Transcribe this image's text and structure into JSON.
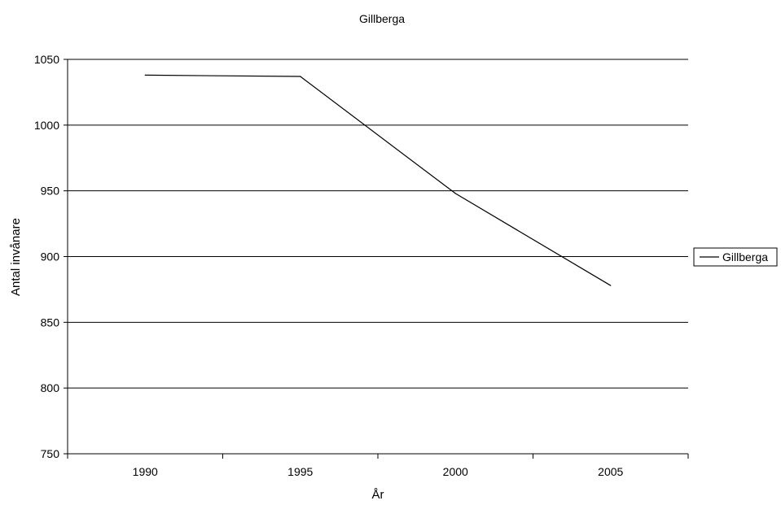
{
  "chart_data": {
    "type": "line",
    "title": "Gillberga",
    "xlabel": "År",
    "ylabel": "Antal invånare",
    "categories": [
      "1990",
      "1995",
      "2000",
      "2005"
    ],
    "series": [
      {
        "name": "Gillberga",
        "values": [
          1038,
          1037,
          948,
          878
        ],
        "color": "#000000"
      }
    ],
    "ylim": [
      750,
      1050
    ],
    "yticks": [
      750,
      800,
      850,
      900,
      950,
      1000,
      1050
    ],
    "grid": true,
    "legend_position": "right"
  }
}
